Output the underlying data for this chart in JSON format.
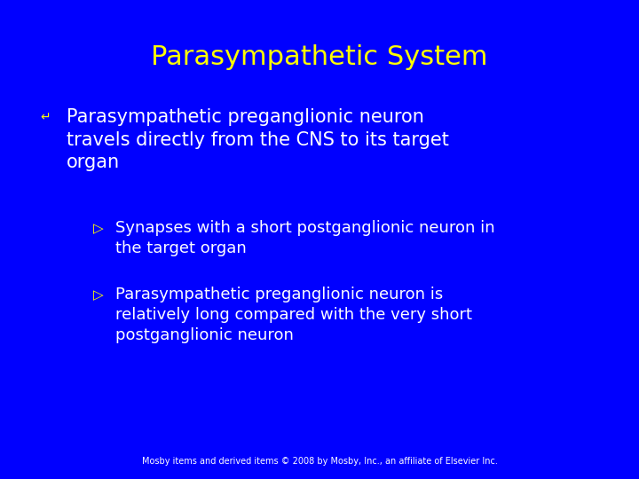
{
  "background_color": "#0000FF",
  "title": "Parasympathetic System",
  "title_color": "#FFFF00",
  "title_fontsize": 22,
  "bullet1_symbol": "↵",
  "bullet1_color": "#FFFF00",
  "bullet1_text": "Parasympathetic preganglionic neuron\ntravels directly from the CNS to its target\norgan",
  "bullet1_color_text": "#FFFFFF",
  "bullet1_fontsize": 15,
  "sub_bullet_marker": "▷",
  "sub_bullet_color": "#FFFF00",
  "sub_bullet1_text": "Synapses with a short postganglionic neuron in\nthe target organ",
  "sub_bullet2_text": "Parasympathetic preganglionic neuron is\nrelatively long compared with the very short\npostganglionic neuron",
  "sub_bullet_color_text": "#FFFFFF",
  "sub_bullet_fontsize": 13,
  "footer_text": "Mosby items and derived items © 2008 by Mosby, Inc., an affiliate of Elsevier Inc.",
  "footer_color": "#FFFFFF",
  "footer_fontsize": 7
}
